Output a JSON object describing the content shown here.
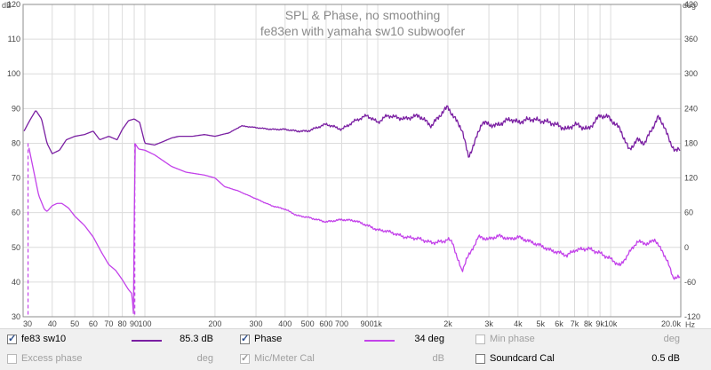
{
  "chart_data": {
    "type": "line",
    "title": "SPL & Phase, no smoothing",
    "subtitle": "fe83en with yamaha sw10 subwoofer",
    "left_axis": {
      "unit": "dB",
      "ticks": [
        30,
        40,
        50,
        60,
        70,
        80,
        90,
        100,
        110,
        120
      ],
      "range": [
        30,
        120
      ]
    },
    "right_axis": {
      "unit": "deg",
      "ticks": [
        -120,
        -60,
        0,
        60,
        120,
        180,
        240,
        300,
        360,
        420
      ],
      "range": [
        -120,
        420
      ]
    },
    "x_axis": {
      "unit": "Hz",
      "scale": "log",
      "range": [
        30,
        20000
      ],
      "ticks": [
        {
          "value": 30,
          "label": "30"
        },
        {
          "value": 40,
          "label": "40"
        },
        {
          "value": 50,
          "label": "50"
        },
        {
          "value": 60,
          "label": "60"
        },
        {
          "value": 70,
          "label": "70"
        },
        {
          "value": 80,
          "label": "80"
        },
        {
          "value": 90,
          "label": "90"
        },
        {
          "value": 100,
          "label": "100"
        },
        {
          "value": 200,
          "label": "200"
        },
        {
          "value": 300,
          "label": "300"
        },
        {
          "value": 400,
          "label": "400"
        },
        {
          "value": 500,
          "label": "500"
        },
        {
          "value": 600,
          "label": "600"
        },
        {
          "value": 700,
          "label": "700"
        },
        {
          "value": 900,
          "label": "900"
        },
        {
          "value": 1000,
          "label": "1k"
        },
        {
          "value": 2000,
          "label": "2k"
        },
        {
          "value": 3000,
          "label": "3k"
        },
        {
          "value": 4000,
          "label": "4k"
        },
        {
          "value": 5000,
          "label": "5k"
        },
        {
          "value": 6000,
          "label": "6k"
        },
        {
          "value": 7000,
          "label": "7k"
        },
        {
          "value": 8000,
          "label": "8k"
        },
        {
          "value": 9000,
          "label": "9k"
        },
        {
          "value": 10000,
          "label": "10k"
        },
        {
          "value": 20000,
          "label": "20.0k"
        }
      ]
    },
    "grid": true,
    "series": [
      {
        "name": "fe83 sw10",
        "axis": "left",
        "color": "#7a1fa2",
        "points": [
          [
            30,
            83
          ],
          [
            32,
            86.5
          ],
          [
            34,
            89.5
          ],
          [
            36,
            87
          ],
          [
            38,
            80
          ],
          [
            40,
            77
          ],
          [
            43,
            78
          ],
          [
            46,
            81
          ],
          [
            50,
            82
          ],
          [
            55,
            82.5
          ],
          [
            60,
            83.5
          ],
          [
            64,
            81
          ],
          [
            70,
            82
          ],
          [
            76,
            81
          ],
          [
            80,
            84
          ],
          [
            85,
            86.5
          ],
          [
            90,
            87
          ],
          [
            95,
            86
          ],
          [
            100,
            80
          ],
          [
            110,
            79.5
          ],
          [
            120,
            80.5
          ],
          [
            130,
            81.5
          ],
          [
            140,
            82
          ],
          [
            160,
            82
          ],
          [
            180,
            82.5
          ],
          [
            200,
            82
          ],
          [
            230,
            83
          ],
          [
            260,
            85
          ],
          [
            300,
            84.5
          ],
          [
            350,
            84
          ],
          [
            400,
            84
          ],
          [
            450,
            83.5
          ],
          [
            500,
            83.5
          ],
          [
            600,
            85.5
          ],
          [
            700,
            84
          ],
          [
            800,
            86.5
          ],
          [
            900,
            88
          ],
          [
            1000,
            86
          ],
          [
            1100,
            88
          ],
          [
            1300,
            87
          ],
          [
            1500,
            88
          ],
          [
            1700,
            85
          ],
          [
            1900,
            89
          ],
          [
            2000,
            90.5
          ],
          [
            2100,
            88
          ],
          [
            2300,
            84
          ],
          [
            2450,
            76
          ],
          [
            2600,
            80
          ],
          [
            2800,
            86
          ],
          [
            3200,
            85
          ],
          [
            3700,
            87
          ],
          [
            4000,
            86
          ],
          [
            4500,
            87
          ],
          [
            5000,
            86.5
          ],
          [
            5500,
            86
          ],
          [
            6000,
            85
          ],
          [
            6500,
            84
          ],
          [
            7000,
            85.5
          ],
          [
            8000,
            84
          ],
          [
            9000,
            88
          ],
          [
            9800,
            87.5
          ],
          [
            11000,
            84
          ],
          [
            12000,
            78
          ],
          [
            13000,
            81
          ],
          [
            14000,
            80
          ],
          [
            15000,
            84
          ],
          [
            16000,
            87.5
          ],
          [
            17000,
            85
          ],
          [
            18000,
            80
          ],
          [
            19000,
            78
          ],
          [
            20000,
            78
          ]
        ]
      },
      {
        "name": "Phase",
        "axis": "right",
        "color": "#c342ea",
        "points": [
          [
            31.5,
            180
          ],
          [
            33,
            140
          ],
          [
            35,
            90
          ],
          [
            37,
            66
          ],
          [
            38,
            62
          ],
          [
            40,
            72
          ],
          [
            42,
            76
          ],
          [
            44,
            76
          ],
          [
            47,
            68
          ],
          [
            50,
            54
          ],
          [
            55,
            38
          ],
          [
            60,
            18
          ],
          [
            65,
            -8
          ],
          [
            70,
            -30
          ],
          [
            75,
            -40
          ],
          [
            80,
            -56
          ],
          [
            85,
            -73
          ],
          [
            88,
            -80
          ],
          [
            89.5,
            -120
          ],
          [
            90.5,
            180
          ],
          [
            94,
            170
          ],
          [
            100,
            168
          ],
          [
            110,
            160
          ],
          [
            130,
            140
          ],
          [
            150,
            130
          ],
          [
            180,
            125
          ],
          [
            200,
            120
          ],
          [
            220,
            105
          ],
          [
            250,
            98
          ],
          [
            300,
            84
          ],
          [
            350,
            72
          ],
          [
            400,
            66
          ],
          [
            450,
            55
          ],
          [
            500,
            52
          ],
          [
            600,
            44
          ],
          [
            700,
            48
          ],
          [
            800,
            46
          ],
          [
            900,
            38
          ],
          [
            1000,
            30
          ],
          [
            1100,
            28
          ],
          [
            1300,
            18
          ],
          [
            1500,
            15
          ],
          [
            1700,
            8
          ],
          [
            1900,
            10
          ],
          [
            2000,
            14
          ],
          [
            2100,
            8
          ],
          [
            2200,
            -20
          ],
          [
            2300,
            -42
          ],
          [
            2400,
            -20
          ],
          [
            2500,
            -10
          ],
          [
            2700,
            18
          ],
          [
            3000,
            14
          ],
          [
            3300,
            20
          ],
          [
            3700,
            14
          ],
          [
            4000,
            18
          ],
          [
            4500,
            10
          ],
          [
            5000,
            3
          ],
          [
            5500,
            -5
          ],
          [
            6000,
            -9
          ],
          [
            6500,
            -14
          ],
          [
            7000,
            -5
          ],
          [
            8000,
            -2
          ],
          [
            9000,
            -10
          ],
          [
            10000,
            -20
          ],
          [
            11000,
            -32
          ],
          [
            11500,
            -20
          ],
          [
            13000,
            10
          ],
          [
            14500,
            6
          ],
          [
            15500,
            14
          ],
          [
            16500,
            -5
          ],
          [
            17500,
            -22
          ],
          [
            18500,
            -53
          ],
          [
            19500,
            -50
          ],
          [
            20000,
            -54
          ]
        ]
      }
    ],
    "markers": [
      {
        "frequency": 31.5,
        "type": "dashed-vertical"
      },
      {
        "frequency": 90.5,
        "type": "dashed-vertical"
      }
    ]
  },
  "legend": {
    "row1": [
      {
        "label": "fe83 sw10",
        "checked": true,
        "enabled": true,
        "value": "85.3 dB",
        "swatch": "#7a1fa2"
      },
      {
        "label": "Phase",
        "checked": true,
        "enabled": true,
        "value": "34 deg",
        "swatch": "#c342ea"
      },
      {
        "label": "Min phase",
        "checked": false,
        "enabled": false,
        "value": "deg"
      }
    ],
    "row2": [
      {
        "label": "Excess phase",
        "checked": false,
        "enabled": false,
        "value": "deg"
      },
      {
        "label": "Mic/Meter Cal",
        "checked": true,
        "enabled": false,
        "value": "dB"
      },
      {
        "label": "Soundcard Cal",
        "checked": false,
        "enabled": true,
        "value": "0.5 dB"
      }
    ]
  }
}
